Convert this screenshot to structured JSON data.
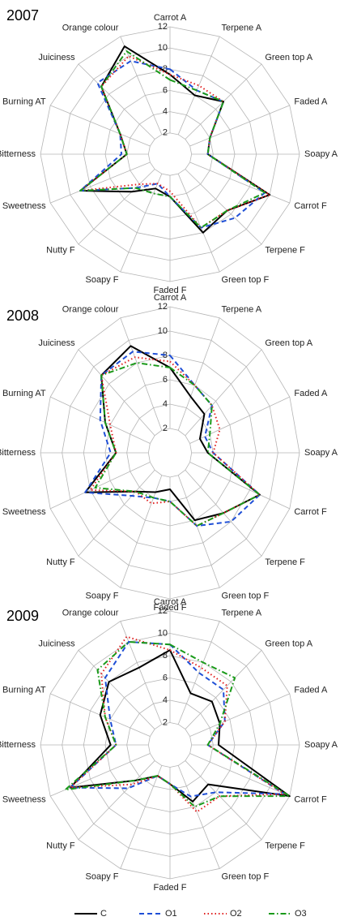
{
  "chart_data": [
    {
      "type": "radar",
      "title": "2007",
      "categories": [
        "Carrot A",
        "Terpene A",
        "Green top A",
        "Faded A",
        "Soapy A",
        "Carrot F",
        "Terpene F",
        "Green top F",
        "Faded F",
        "Soapy F",
        "Nutty F",
        "Sweetness",
        "Bitterness",
        "Burning AT",
        "Juiciness",
        "Orange colour"
      ],
      "rlim": [
        0,
        12
      ],
      "rticks": [
        2,
        4,
        6,
        8,
        10,
        12
      ],
      "grid": true,
      "legend": "bottom",
      "series": [
        {
          "name": "C",
          "color": "#000000",
          "linestyle": "solid",
          "values": [
            7.5,
            6,
            7,
            4,
            3.5,
            10,
            7.5,
            8,
            4,
            3.5,
            5,
            9,
            4,
            5,
            9,
            11
          ]
        },
        {
          "name": "O1",
          "color": "#1f4fd6",
          "linestyle": "dashed",
          "values": [
            8,
            6.5,
            7,
            4,
            3.5,
            9.5,
            8.5,
            7.5,
            4,
            3,
            4.5,
            9,
            4.5,
            5,
            9.5,
            9.5
          ]
        },
        {
          "name": "O2",
          "color": "#e02020",
          "linestyle": "dotted",
          "values": [
            7.5,
            7,
            7,
            4,
            3.5,
            10,
            7.5,
            7.5,
            3.5,
            3,
            4,
            9,
            4,
            5,
            9,
            10
          ]
        },
        {
          "name": "O3",
          "color": "#1a9a1a",
          "linestyle": "dashdot",
          "values": [
            7,
            6.5,
            7,
            4,
            3.5,
            9.5,
            7.5,
            7.5,
            4,
            4,
            4.5,
            9,
            4,
            5,
            9,
            10.5
          ]
        }
      ]
    },
    {
      "type": "radar",
      "title": "2008",
      "categories": [
        "Carrot A",
        "Terpene A",
        "Green top A",
        "Faded A",
        "Soapy A",
        "Carrot F",
        "Terpene F",
        "Green top F",
        "Faded F",
        "Soapy F",
        "Nutty F",
        "Sweetness",
        "Bitterness",
        "Burning AT",
        "Juiciness",
        "Orange colour"
      ],
      "rlim": [
        0,
        12
      ],
      "rticks": [
        2,
        4,
        6,
        8,
        10,
        12
      ],
      "grid": true,
      "series": [
        {
          "values": [
            7,
            5,
            4.5,
            3,
            3.5,
            9,
            7,
            6,
            3,
            3.5,
            4.5,
            8.5,
            5,
            6.5,
            9,
            9.5
          ]
        },
        {
          "values": [
            8,
            6,
            5.5,
            3.5,
            4,
            9,
            8,
            6.5,
            4,
            4,
            5,
            8.5,
            5.5,
            7,
            9,
            9
          ]
        },
        {
          "values": [
            7.5,
            6,
            5.5,
            5,
            4,
            9,
            7,
            6.5,
            4,
            4.5,
            4.5,
            8,
            5,
            6,
            9,
            8.5
          ]
        },
        {
          "values": [
            7,
            6,
            5.5,
            4,
            3.5,
            9,
            7,
            6.5,
            4,
            4,
            4.5,
            7.5,
            5,
            6.5,
            9,
            8
          ]
        }
      ]
    },
    {
      "type": "radar",
      "title": "2009",
      "categories": [
        "Carrot A",
        "Terpene A",
        "Green top A",
        "Faded A",
        "Soapy A",
        "Carrot F",
        "Terpene F",
        "Green top F",
        "Faded F",
        "Soapy F",
        "Nutty F",
        "Sweetness",
        "Bitterness",
        "Burning AT",
        "Juiciness",
        "Orange colour"
      ],
      "rlim": [
        0,
        12
      ],
      "rticks": [
        2,
        4,
        6,
        8,
        10,
        12
      ],
      "grid": true,
      "series": [
        {
          "values": [
            8.5,
            5,
            5.5,
            5,
            4.5,
            12,
            5,
            5.5,
            3.5,
            3,
            4.5,
            10,
            5.5,
            7,
            8,
            7.5
          ]
        },
        {
          "values": [
            9,
            7,
            7,
            5.5,
            3.5,
            11.5,
            6,
            5,
            3.5,
            3,
            5.5,
            10,
            5,
            6,
            8.5,
            10
          ]
        },
        {
          "values": [
            8.5,
            7.5,
            7.5,
            5.5,
            3.5,
            11.5,
            6.5,
            6.5,
            3.5,
            3,
            5,
            10,
            5,
            6.5,
            9,
            10.5
          ]
        },
        {
          "values": [
            9,
            8,
            8.5,
            5,
            3.5,
            12,
            6.5,
            6,
            3.5,
            3,
            4.5,
            10.5,
            5,
            6.5,
            9.5,
            10
          ]
        }
      ]
    }
  ]
}
